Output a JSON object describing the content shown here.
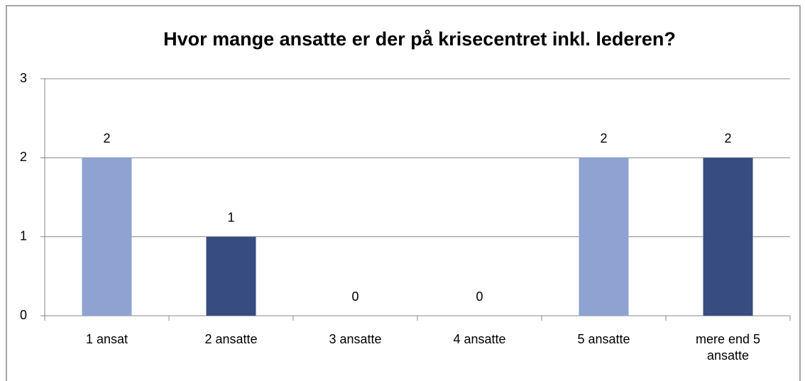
{
  "chart_data": {
    "type": "bar",
    "title": "Hvor mange ansatte er der på krisecentret inkl. lederen?",
    "categories": [
      "1 ansat",
      "2 ansatte",
      "3 ansatte",
      "4 ansatte",
      "5 ansatte",
      "mere end 5 ansatte"
    ],
    "values": [
      2,
      1,
      0,
      0,
      2,
      2
    ],
    "colors": [
      "#8fa3d2",
      "#374c80",
      "#8fa3d2",
      "#374c80",
      "#8fa3d2",
      "#374c80"
    ],
    "ylim": [
      0,
      3
    ],
    "yticks": [
      0,
      1,
      2,
      3
    ],
    "grid": true
  }
}
